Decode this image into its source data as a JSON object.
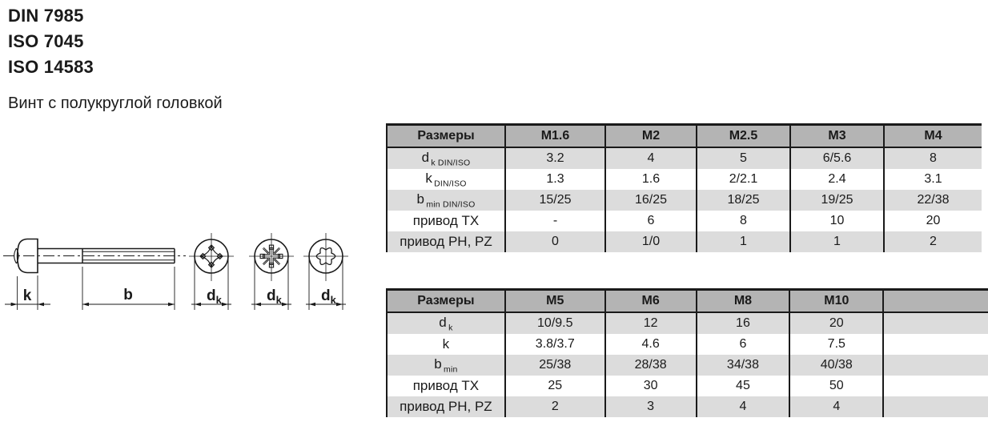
{
  "header": {
    "standards": [
      "DIN 7985",
      "ISO 7045",
      "ISO 14583"
    ],
    "subtitle": "Винт с полукруглой головкой"
  },
  "drawing": {
    "head_height_label": "k",
    "thread_length_label": "b",
    "head_diameter_main": "d",
    "head_diameter_sub": "k",
    "views": [
      "side-view",
      "phillips-recess",
      "pozidriv-recess",
      "torx-recess"
    ]
  },
  "tables": [
    {
      "columns": [
        "Размеры",
        "M1.6",
        "M2",
        "M2.5",
        "M3",
        "M4"
      ],
      "rows": [
        {
          "label": "d",
          "sub": "k DIN/ISO",
          "values": [
            "3.2",
            "4",
            "5",
            "6/5.6",
            "8"
          ]
        },
        {
          "label": "k",
          "sub": "DIN/ISO",
          "values": [
            "1.3",
            "1.6",
            "2/2.1",
            "2.4",
            "3.1"
          ]
        },
        {
          "label": "b",
          "sub": "min DIN/ISO",
          "values": [
            "15/25",
            "16/25",
            "18/25",
            "19/25",
            "22/38"
          ]
        },
        {
          "label": "привод TX",
          "sub": "",
          "values": [
            "-",
            "6",
            "8",
            "10",
            "20"
          ]
        },
        {
          "label": "привод PH, PZ",
          "sub": "",
          "values": [
            "0",
            "1/0",
            "1",
            "1",
            "2"
          ]
        }
      ]
    },
    {
      "columns": [
        "Размеры",
        "M5",
        "M6",
        "M8",
        "M10",
        ""
      ],
      "rows": [
        {
          "label": "d",
          "sub": "k",
          "values": [
            "10/9.5",
            "12",
            "16",
            "20",
            ""
          ]
        },
        {
          "label": "k",
          "sub": "",
          "values": [
            "3.8/3.7",
            "4.6",
            "6",
            "7.5",
            ""
          ]
        },
        {
          "label": "b",
          "sub": "min",
          "values": [
            "25/38",
            "28/38",
            "34/38",
            "40/38",
            ""
          ]
        },
        {
          "label": "привод TX",
          "sub": "",
          "values": [
            "25",
            "30",
            "45",
            "50",
            ""
          ]
        },
        {
          "label": "привод PH, PZ",
          "sub": "",
          "values": [
            "2",
            "3",
            "4",
            "4",
            ""
          ]
        }
      ]
    }
  ],
  "colors": {
    "header_bg": "#b4b4b4",
    "stripe_bg": "#dcdcdc",
    "line": "#1a1a1a"
  }
}
